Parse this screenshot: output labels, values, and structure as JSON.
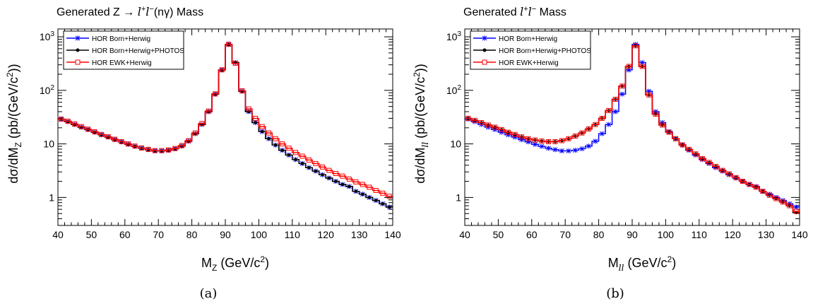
{
  "chart_data": [
    {
      "type": "line",
      "title": "Generated Z → l⁺ l⁻(nγ) Mass",
      "xlabel": "M_Z (GeV/c^2)",
      "ylabel": "dσ/dM_Z (pb/(GeV/c^2))",
      "caption": "(a)",
      "xlim": [
        40,
        140
      ],
      "ylim": [
        0.3,
        1400
      ],
      "yscale": "log",
      "x_ticks": [
        "40",
        "50",
        "60",
        "70",
        "80",
        "90",
        "100",
        "110",
        "120",
        "130",
        "140"
      ],
      "y_ticks": [
        "1",
        "10",
        "10^2",
        "10^3"
      ],
      "legend_position": "top-left",
      "bin_edges": [
        40,
        42,
        44,
        46,
        48,
        50,
        52,
        54,
        56,
        58,
        60,
        62,
        64,
        66,
        68,
        70,
        72,
        74,
        76,
        78,
        80,
        82,
        84,
        86,
        88,
        90,
        92,
        94,
        96,
        98,
        100,
        102,
        104,
        106,
        108,
        110,
        112,
        114,
        116,
        118,
        120,
        122,
        124,
        126,
        128,
        130,
        132,
        134,
        136,
        138,
        140
      ],
      "series": [
        {
          "name": "HOR Born+Herwig",
          "color": "#0000ff",
          "marker": "star",
          "values": [
            29,
            26,
            23,
            20.5,
            18.5,
            16.5,
            14.8,
            13.4,
            12,
            10.9,
            9.8,
            9,
            8.3,
            7.8,
            7.4,
            7.4,
            7.6,
            8.1,
            9.1,
            11.2,
            15.5,
            23,
            40,
            85,
            240,
            720,
            330,
            96,
            40,
            25,
            17,
            12.5,
            9.5,
            7.6,
            6.2,
            5.1,
            4.3,
            3.6,
            3.1,
            2.65,
            2.3,
            2,
            1.75,
            1.6,
            1.3,
            1.15,
            1,
            0.88,
            0.76,
            0.66
          ]
        },
        {
          "name": "HOR Born+Herwig+PHOTOS",
          "color": "#000000",
          "marker": "circle",
          "values": [
            29,
            26,
            23,
            20.5,
            18.5,
            16.5,
            14.8,
            13.4,
            12,
            10.9,
            9.8,
            9,
            8.3,
            7.8,
            7.4,
            7.4,
            7.6,
            8.1,
            9.1,
            11.2,
            15.5,
            23,
            40,
            85,
            240,
            720,
            330,
            96,
            40,
            25,
            17,
            12.5,
            9.5,
            7.6,
            6.2,
            5.1,
            4.3,
            3.6,
            3.1,
            2.65,
            2.3,
            2,
            1.75,
            1.6,
            1.3,
            1.15,
            1,
            0.88,
            0.76,
            0.66
          ]
        },
        {
          "name": "HOR EWK+Herwig",
          "color": "#ff0000",
          "marker": "open-square",
          "values": [
            29,
            26.5,
            23.5,
            21,
            18.8,
            16.8,
            15,
            13.6,
            12.2,
            11,
            10,
            9.1,
            8.4,
            7.9,
            7.5,
            7.5,
            7.7,
            8.2,
            9.3,
            11.5,
            16,
            24,
            41,
            86,
            242,
            725,
            320,
            98,
            45,
            30,
            21,
            16,
            12.5,
            10,
            8.3,
            6.9,
            5.9,
            5,
            4.3,
            3.7,
            3.2,
            2.8,
            2.5,
            2.2,
            1.95,
            1.75,
            1.55,
            1.35,
            1.2,
            1.05
          ]
        }
      ]
    },
    {
      "type": "line",
      "title": "Generated l⁺ l⁻ Mass",
      "xlabel": "M_ll (GeV/c^2)",
      "ylabel": "dσ/dM_ll (pb/(GeV/c^2))",
      "caption": "(b)",
      "xlim": [
        40,
        140
      ],
      "ylim": [
        0.3,
        1400
      ],
      "yscale": "log",
      "x_ticks": [
        "40",
        "50",
        "60",
        "70",
        "80",
        "90",
        "100",
        "110",
        "120",
        "130",
        "140"
      ],
      "y_ticks": [
        "1",
        "10",
        "10^2",
        "10^3"
      ],
      "legend_position": "top-left",
      "bin_edges": [
        40,
        42,
        44,
        46,
        48,
        50,
        52,
        54,
        56,
        58,
        60,
        62,
        64,
        66,
        68,
        70,
        72,
        74,
        76,
        78,
        80,
        82,
        84,
        86,
        88,
        90,
        92,
        94,
        96,
        98,
        100,
        102,
        104,
        106,
        108,
        110,
        112,
        114,
        116,
        118,
        120,
        122,
        124,
        126,
        128,
        130,
        132,
        134,
        136,
        138,
        140
      ],
      "series": [
        {
          "name": "HOR Born+Herwig",
          "color": "#0000ff",
          "marker": "star",
          "values": [
            29,
            26,
            23,
            20.5,
            18.5,
            16.5,
            14.8,
            13.4,
            12,
            10.9,
            9.8,
            9,
            8.3,
            7.8,
            7.4,
            7.4,
            7.6,
            8.1,
            9.1,
            11.2,
            15.5,
            23,
            40,
            85,
            240,
            720,
            330,
            96,
            40,
            25,
            17,
            12.5,
            9.5,
            7.6,
            6.2,
            5.1,
            4.3,
            3.6,
            3.1,
            2.65,
            2.3,
            2,
            1.75,
            1.6,
            1.3,
            1.15,
            1,
            0.88,
            0.76,
            0.66
          ]
        },
        {
          "name": "HOR Born+Herwig+PHOTOS",
          "color": "#000000",
          "marker": "circle",
          "values": [
            30,
            27.5,
            25,
            22.5,
            20.5,
            18.5,
            16.5,
            15,
            13.5,
            12.5,
            11.8,
            11.3,
            11,
            11,
            11.5,
            12.5,
            14,
            16,
            19,
            23,
            30,
            42,
            68,
            120,
            280,
            680,
            280,
            82,
            36,
            22.5,
            16.5,
            12.5,
            9.6,
            7.9,
            6.5,
            5.3,
            4.5,
            3.8,
            3.2,
            2.75,
            2.35,
            2,
            1.75,
            1.55,
            1.3,
            1.1,
            0.95,
            0.82,
            0.7,
            0.52
          ]
        },
        {
          "name": "HOR EWK+Herwig",
          "color": "#ff0000",
          "marker": "open-square",
          "values": [
            30,
            27.5,
            25,
            22.5,
            20.5,
            18.5,
            16.5,
            15,
            13.5,
            12.5,
            11.8,
            11.3,
            11,
            11,
            11.5,
            12.5,
            14,
            16,
            19,
            23,
            30,
            42,
            68,
            120,
            280,
            680,
            280,
            82,
            36,
            22.5,
            16.5,
            12.5,
            9.6,
            7.9,
            6.5,
            5.3,
            4.5,
            3.8,
            3.2,
            2.75,
            2.35,
            2,
            1.75,
            1.55,
            1.3,
            1.1,
            0.95,
            0.82,
            0.7,
            0.55
          ]
        }
      ]
    }
  ]
}
